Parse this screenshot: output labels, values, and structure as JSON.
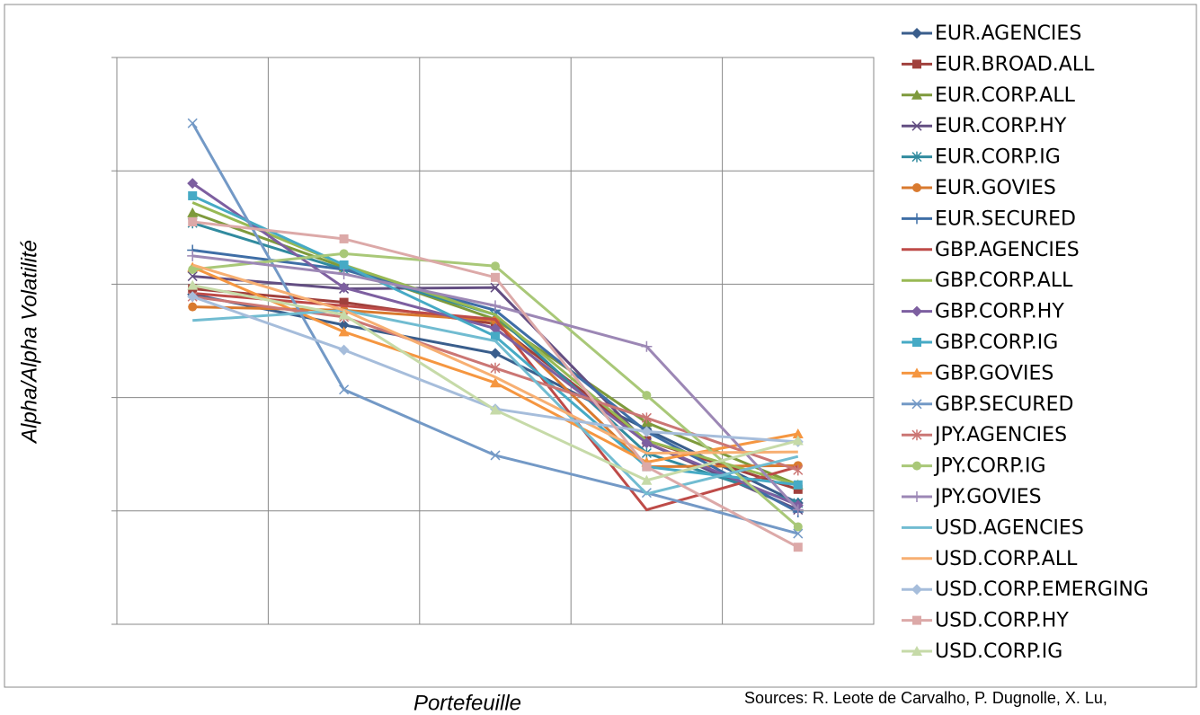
{
  "chart_data": {
    "type": "line",
    "x_label": "Portefeuille",
    "y_label": "Alpha/Alpha Volatilité",
    "note": "Sources: R. Leote de Carvalho, P. Dugnolle, X. Lu,",
    "categories": [
      null,
      null,
      null,
      null,
      null
    ],
    "ylim": [
      0,
      5
    ],
    "yticks": [
      0,
      1,
      2,
      3,
      4,
      5
    ],
    "grid": true,
    "legend": "right",
    "series": [
      {
        "name": "EUR.AGENCIES",
        "color": "#3A5E8C",
        "marker": "diamond",
        "values": [
          2.91,
          2.64,
          2.39,
          1.72,
          1.07
        ]
      },
      {
        "name": "EUR.BROAD.ALL",
        "color": "#A0403C",
        "marker": "square",
        "values": [
          2.96,
          2.84,
          2.65,
          1.62,
          1.19
        ]
      },
      {
        "name": "EUR.CORP.ALL",
        "color": "#7E9A3C",
        "marker": "triangle",
        "values": [
          3.63,
          3.15,
          2.69,
          1.78,
          1.23
        ]
      },
      {
        "name": "EUR.CORP.HY",
        "color": "#634E82",
        "marker": "x",
        "values": [
          3.07,
          2.96,
          2.97,
          1.6,
          1.01
        ]
      },
      {
        "name": "EUR.CORP.IG",
        "color": "#318B9F",
        "marker": "star",
        "values": [
          3.54,
          3.13,
          2.73,
          1.51,
          1.07
        ]
      },
      {
        "name": "EUR.GOVIES",
        "color": "#D97A2F",
        "marker": "circle",
        "values": [
          2.8,
          2.77,
          2.68,
          1.39,
          1.4
        ]
      },
      {
        "name": "EUR.SECURED",
        "color": "#3F6EA6",
        "marker": "plus",
        "values": [
          3.3,
          3.13,
          2.77,
          1.7,
          0.99
        ]
      },
      {
        "name": "GBP.AGENCIES",
        "color": "#BE4B48",
        "marker": "none",
        "values": [
          2.92,
          2.81,
          2.69,
          1.01,
          1.39
        ]
      },
      {
        "name": "GBP.CORP.ALL",
        "color": "#98B954",
        "marker": "none",
        "values": [
          3.72,
          3.17,
          2.73,
          1.62,
          1.23
        ]
      },
      {
        "name": "GBP.CORP.HY",
        "color": "#7D5FA0",
        "marker": "diamond",
        "values": [
          3.89,
          2.97,
          2.61,
          1.6,
          1.05
        ]
      },
      {
        "name": "GBP.CORP.IG",
        "color": "#46AAC5",
        "marker": "square",
        "values": [
          3.78,
          3.17,
          2.54,
          1.39,
          1.23
        ]
      },
      {
        "name": "GBP.GOVIES",
        "color": "#F59640",
        "marker": "triangle",
        "values": [
          3.15,
          2.58,
          2.13,
          1.43,
          1.68
        ]
      },
      {
        "name": "GBP.SECURED",
        "color": "#7399C6",
        "marker": "x",
        "values": [
          4.42,
          2.07,
          1.49,
          1.16,
          0.8
        ]
      },
      {
        "name": "JPY.AGENCIES",
        "color": "#CB7674",
        "marker": "star",
        "values": [
          2.89,
          2.71,
          2.26,
          1.82,
          1.36
        ]
      },
      {
        "name": "JPY.CORP.IG",
        "color": "#A9C878",
        "marker": "circle",
        "values": [
          3.13,
          3.27,
          3.16,
          2.02,
          0.86
        ]
      },
      {
        "name": "JPY.GOVIES",
        "color": "#9C87B5",
        "marker": "plus",
        "values": [
          3.25,
          3.09,
          2.81,
          2.45,
          1.01
        ]
      },
      {
        "name": "USD.AGENCIES",
        "color": "#71BCD1",
        "marker": "none",
        "values": [
          2.68,
          2.77,
          2.5,
          1.15,
          1.48
        ]
      },
      {
        "name": "USD.CORP.ALL",
        "color": "#F7AF72",
        "marker": "none",
        "values": [
          3.17,
          2.77,
          2.18,
          1.51,
          1.52
        ]
      },
      {
        "name": "USD.CORP.EMERGING",
        "color": "#A6BDDB",
        "marker": "diamond",
        "values": [
          2.89,
          2.42,
          1.9,
          1.7,
          1.61
        ]
      },
      {
        "name": "USD.CORP.HY",
        "color": "#DCA9A8",
        "marker": "square",
        "values": [
          3.55,
          3.4,
          3.06,
          1.39,
          0.68
        ]
      },
      {
        "name": "USD.CORP.IG",
        "color": "#C6DAA8",
        "marker": "triangle",
        "values": [
          2.99,
          2.73,
          1.89,
          1.27,
          1.62
        ]
      }
    ]
  }
}
